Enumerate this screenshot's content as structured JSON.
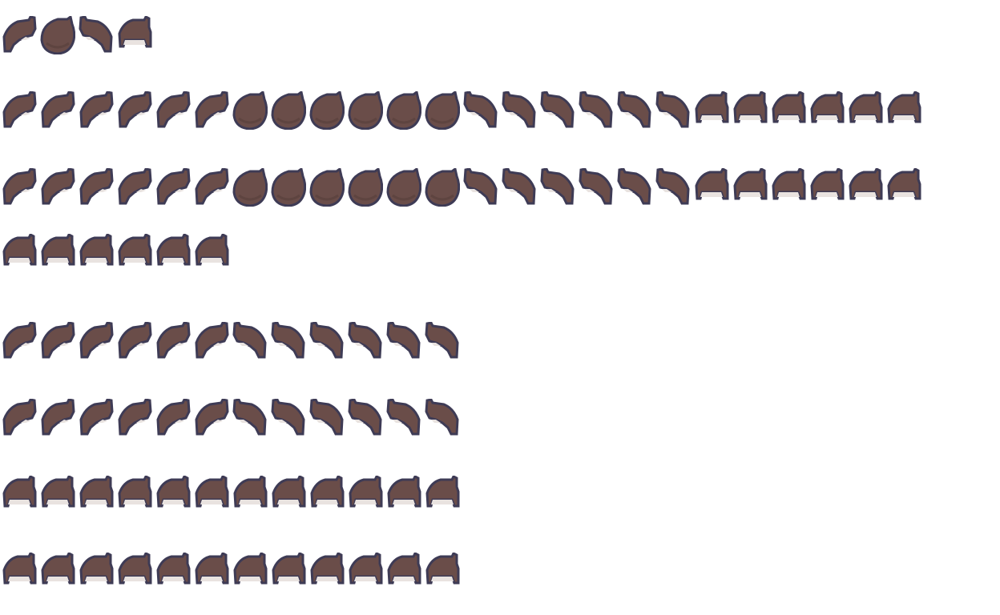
{
  "sheet": {
    "colors": {
      "hair_fill": "#6a4d49",
      "hair_shade": "#5e4440",
      "outline": "#3e3b55",
      "highlight": "#e9e3e0"
    },
    "rows": [
      [
        "side-left",
        "back",
        "side-right",
        "front"
      ],
      [
        "side-left",
        "side-left",
        "side-left",
        "side-left",
        "side-left",
        "side-left",
        "back",
        "back",
        "back",
        "back",
        "back",
        "back",
        "side-right",
        "side-right",
        "side-right",
        "side-right",
        "side-right",
        "side-right",
        "front",
        "front",
        "front",
        "front",
        "front",
        "front"
      ],
      [
        "side-left",
        "side-left",
        "side-left",
        "side-left",
        "side-left",
        "side-left",
        "back",
        "back",
        "back",
        "back",
        "back",
        "back",
        "side-right",
        "side-right",
        "side-right",
        "side-right",
        "side-right",
        "side-right",
        "front",
        "front",
        "front",
        "front",
        "front",
        "front"
      ],
      [
        "front",
        "front",
        "front",
        "front",
        "front",
        "front"
      ],
      [
        "side-left",
        "side-left",
        "side-left",
        "side-left",
        "side-left",
        "side-left",
        "side-right",
        "side-right",
        "side-right",
        "side-right",
        "side-right",
        "side-right"
      ],
      [
        "side-left",
        "side-left",
        "side-left",
        "side-left",
        "side-left",
        "side-left",
        "side-right",
        "side-right",
        "side-right",
        "side-right",
        "side-right",
        "side-right"
      ],
      [
        "front",
        "front",
        "front",
        "front",
        "front",
        "front",
        "front",
        "front",
        "front",
        "front",
        "front",
        "front"
      ],
      [
        "front",
        "front",
        "front",
        "front",
        "front",
        "front",
        "front",
        "front",
        "front",
        "front",
        "front",
        "front"
      ]
    ]
  }
}
